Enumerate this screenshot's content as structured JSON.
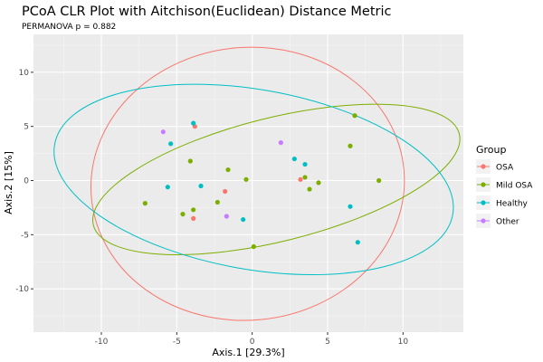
{
  "chart_data": {
    "type": "scatter",
    "title": "PCoA CLR Plot with Aitchison(Euclidean) Distance Metric",
    "subtitle": "PERMANOVA p = 0.882",
    "xlabel": "Axis.1   [29.3%]",
    "ylabel": "Axis.2   [15%]",
    "xlim": [
      -14.5,
      14.0
    ],
    "ylim": [
      -14.0,
      13.5
    ],
    "xticks": [
      -10,
      -5,
      0,
      5,
      10
    ],
    "yticks": [
      -10,
      -5,
      0,
      5,
      10
    ],
    "grid": true,
    "legend": {
      "title": "Group",
      "position": "right"
    },
    "series": [
      {
        "name": "OSA",
        "color": "#F8766D",
        "points": [
          [
            -3.8,
            5.0
          ],
          [
            -1.8,
            -1.0
          ],
          [
            -3.9,
            -3.5
          ],
          [
            3.2,
            0.1
          ]
        ],
        "ellipse": {
          "cx": -0.3,
          "cy": -0.3,
          "rx": 10.4,
          "ry": 12.6,
          "angle": 5
        }
      },
      {
        "name": "Mild OSA",
        "color": "#7CAE00",
        "points": [
          [
            -7.1,
            -2.1
          ],
          [
            -4.6,
            -3.1
          ],
          [
            -3.9,
            -2.7
          ],
          [
            -4.1,
            1.8
          ],
          [
            -1.6,
            1.0
          ],
          [
            -2.3,
            -2.0
          ],
          [
            -0.4,
            0.1
          ],
          [
            0.1,
            -6.1
          ],
          [
            3.5,
            0.3
          ],
          [
            3.8,
            -0.8
          ],
          [
            4.4,
            -0.2
          ],
          [
            6.5,
            3.2
          ],
          [
            6.8,
            6.0
          ],
          [
            8.4,
            0.0
          ]
        ],
        "ellipse": {
          "cx": 1.6,
          "cy": 0.1,
          "rx": 12.5,
          "ry": 5.7,
          "angle": 14
        }
      },
      {
        "name": "Healthy",
        "color": "#00BFC4",
        "points": [
          [
            -3.9,
            5.3
          ],
          [
            -5.4,
            3.4
          ],
          [
            -5.6,
            -0.6
          ],
          [
            -3.4,
            -0.5
          ],
          [
            -0.6,
            -3.6
          ],
          [
            2.8,
            2.0
          ],
          [
            3.5,
            1.5
          ],
          [
            6.5,
            -2.4
          ],
          [
            7.0,
            -5.7
          ]
        ],
        "ellipse": {
          "cx": 0.1,
          "cy": 0.1,
          "rx": 13.4,
          "ry": 8.3,
          "angle": -10
        }
      },
      {
        "name": "Other",
        "color": "#C77CFF",
        "points": [
          [
            -5.9,
            4.5
          ],
          [
            -1.7,
            -3.3
          ],
          [
            1.9,
            3.5
          ]
        ]
      }
    ]
  }
}
